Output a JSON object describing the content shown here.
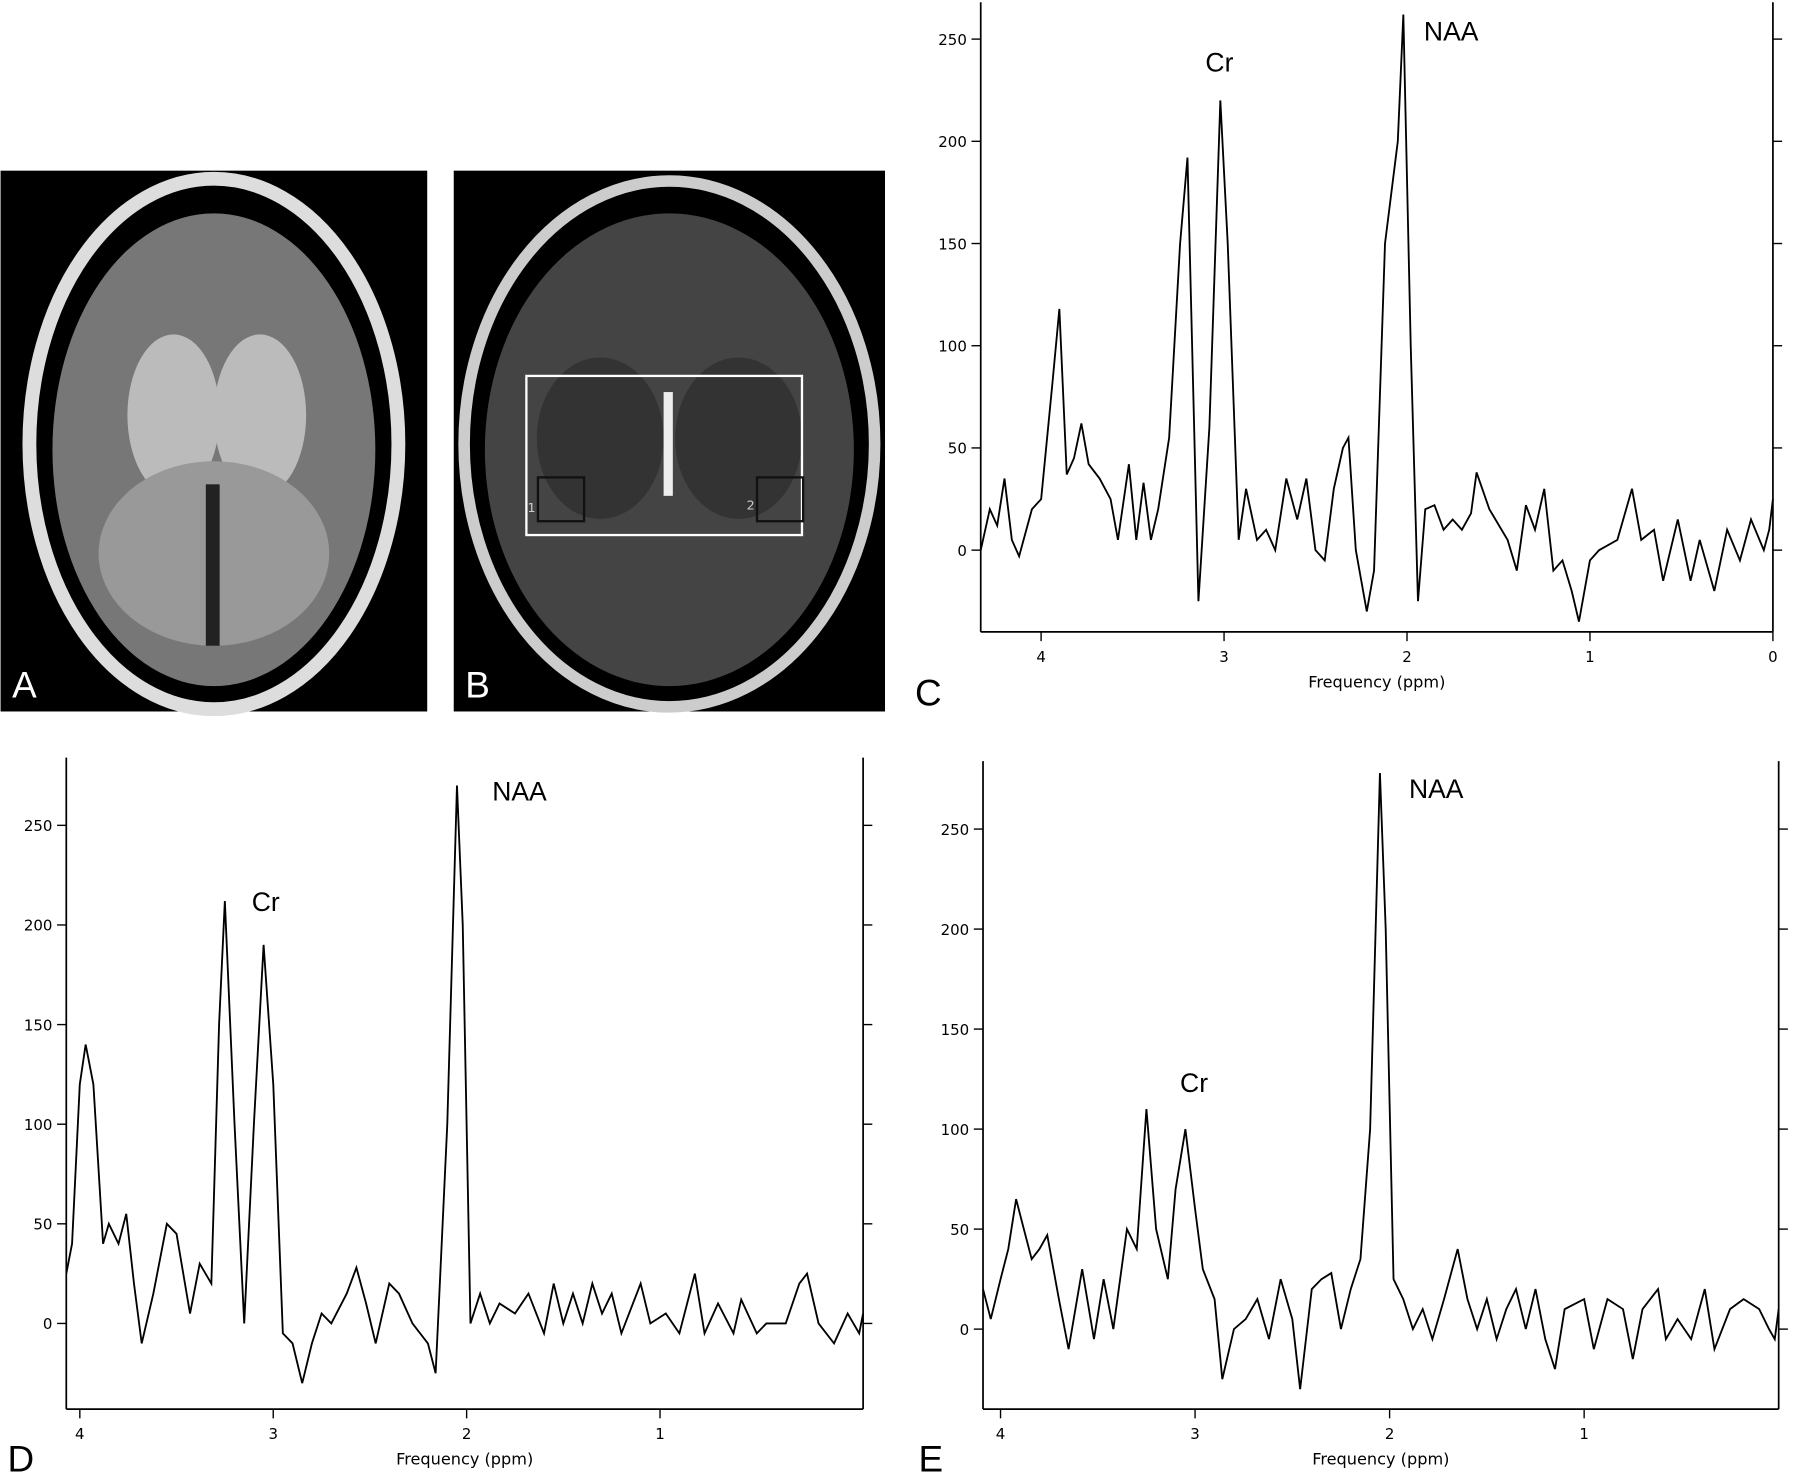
{
  "panel_labels": [
    "A",
    "B",
    "C",
    "D",
    "E"
  ],
  "image_b": {
    "voxel_labels": [
      "1",
      "2"
    ]
  },
  "chart_data": [
    {
      "type": "line",
      "color": "#000000",
      "xlabel": "Frequency (ppm)",
      "annotations": [
        "Cr",
        "NAA"
      ],
      "xlim": [
        4.33,
        0
      ],
      "ylim": [
        -40,
        268
      ],
      "xticks": [
        4,
        3,
        2,
        1,
        0
      ],
      "yticks": [
        0,
        50,
        100,
        150,
        200,
        250
      ],
      "x": [
        4.33,
        4.28,
        4.24,
        4.2,
        4.16,
        4.12,
        4.05,
        4.0,
        3.94,
        3.9,
        3.86,
        3.82,
        3.78,
        3.74,
        3.68,
        3.62,
        3.58,
        3.52,
        3.48,
        3.44,
        3.4,
        3.36,
        3.3,
        3.24,
        3.2,
        3.14,
        3.08,
        3.02,
        2.98,
        2.92,
        2.88,
        2.82,
        2.77,
        2.72,
        2.66,
        2.6,
        2.55,
        2.5,
        2.45,
        2.4,
        2.35,
        2.32,
        2.28,
        2.22,
        2.18,
        2.12,
        2.05,
        2.02,
        1.98,
        1.94,
        1.9,
        1.85,
        1.8,
        1.75,
        1.7,
        1.65,
        1.62,
        1.55,
        1.45,
        1.4,
        1.35,
        1.3,
        1.25,
        1.2,
        1.15,
        1.1,
        1.06,
        1.0,
        0.95,
        0.85,
        0.77,
        0.72,
        0.65,
        0.6,
        0.52,
        0.45,
        0.4,
        0.32,
        0.25,
        0.18,
        0.12,
        0.05,
        0.02,
        0
      ],
      "values": [
        0,
        20,
        12,
        35,
        5,
        -3,
        20,
        25,
        80,
        118,
        37,
        45,
        62,
        42,
        35,
        25,
        5,
        42,
        5,
        33,
        5,
        20,
        55,
        150,
        192,
        -25,
        60,
        220,
        150,
        5,
        30,
        5,
        10,
        0,
        35,
        15,
        35,
        0,
        -5,
        30,
        50,
        55,
        0,
        -30,
        -10,
        150,
        200,
        262,
        100,
        -25,
        20,
        22,
        10,
        15,
        10,
        18,
        38,
        20,
        5,
        -10,
        22,
        10,
        30,
        -10,
        -5,
        -20,
        -35,
        -5,
        0,
        5,
        30,
        5,
        10,
        -15,
        15,
        -15,
        5,
        -20,
        10,
        -5,
        15,
        0,
        10,
        25
      ]
    },
    {
      "type": "line",
      "color": "#000000",
      "xlabel": "Frequency (ppm)",
      "annotations": [
        "Cr",
        "NAA"
      ],
      "xlim": [
        4.07,
        -0.05
      ],
      "ylim": [
        -43,
        284
      ],
      "xticks": [
        4,
        3,
        2,
        1
      ],
      "yticks": [
        0,
        50,
        100,
        150,
        200,
        250
      ],
      "x": [
        4.07,
        4.04,
        4.0,
        3.97,
        3.93,
        3.88,
        3.85,
        3.8,
        3.76,
        3.72,
        3.68,
        3.62,
        3.55,
        3.5,
        3.43,
        3.38,
        3.32,
        3.28,
        3.25,
        3.2,
        3.15,
        3.1,
        3.05,
        3.0,
        2.95,
        2.9,
        2.85,
        2.8,
        2.75,
        2.7,
        2.62,
        2.57,
        2.52,
        2.47,
        2.4,
        2.35,
        2.28,
        2.2,
        2.16,
        2.1,
        2.05,
        2.02,
        1.98,
        1.93,
        1.88,
        1.83,
        1.75,
        1.68,
        1.6,
        1.55,
        1.5,
        1.45,
        1.4,
        1.35,
        1.3,
        1.25,
        1.2,
        1.1,
        1.05,
        0.97,
        0.9,
        0.82,
        0.77,
        0.7,
        0.62,
        0.58,
        0.5,
        0.45,
        0.35,
        0.28,
        0.24,
        0.18,
        0.1,
        0.03,
        -0.03,
        -0.05
      ],
      "values": [
        25,
        40,
        120,
        140,
        120,
        40,
        50,
        40,
        55,
        20,
        -10,
        15,
        50,
        45,
        5,
        30,
        20,
        150,
        212,
        100,
        0,
        100,
        190,
        120,
        -5,
        -10,
        -30,
        -10,
        5,
        0,
        15,
        28,
        10,
        -10,
        20,
        15,
        0,
        -10,
        -25,
        100,
        270,
        200,
        0,
        15,
        0,
        10,
        5,
        15,
        -5,
        20,
        0,
        15,
        0,
        20,
        5,
        15,
        -5,
        20,
        0,
        5,
        -5,
        25,
        -5,
        10,
        -5,
        12,
        -5,
        0,
        0,
        20,
        25,
        0,
        -10,
        5,
        -5,
        5
      ]
    },
    {
      "type": "line",
      "color": "#000000",
      "xlabel": "Frequency (ppm)",
      "annotations": [
        "Cr",
        "NAA"
      ],
      "xlim": [
        4.09,
        0
      ],
      "ylim": [
        -40,
        284
      ],
      "xticks": [
        4,
        3,
        2,
        1
      ],
      "yticks": [
        0,
        50,
        100,
        150,
        200,
        250
      ],
      "x": [
        4.09,
        4.05,
        4.0,
        3.96,
        3.92,
        3.88,
        3.84,
        3.8,
        3.76,
        3.7,
        3.65,
        3.58,
        3.52,
        3.47,
        3.42,
        3.35,
        3.3,
        3.25,
        3.2,
        3.14,
        3.1,
        3.05,
        3.0,
        2.96,
        2.9,
        2.86,
        2.8,
        2.74,
        2.68,
        2.62,
        2.56,
        2.5,
        2.46,
        2.4,
        2.35,
        2.3,
        2.25,
        2.2,
        2.15,
        2.1,
        2.05,
        2.02,
        1.98,
        1.93,
        1.88,
        1.83,
        1.78,
        1.72,
        1.65,
        1.6,
        1.55,
        1.5,
        1.45,
        1.4,
        1.35,
        1.3,
        1.25,
        1.2,
        1.15,
        1.1,
        1.0,
        0.95,
        0.88,
        0.8,
        0.75,
        0.7,
        0.62,
        0.58,
        0.52,
        0.45,
        0.38,
        0.33,
        0.25,
        0.18,
        0.1,
        0.05,
        0.02,
        0
      ],
      "values": [
        20,
        5,
        25,
        40,
        65,
        50,
        35,
        40,
        47,
        15,
        -10,
        30,
        -5,
        25,
        0,
        50,
        40,
        110,
        50,
        25,
        70,
        100,
        60,
        30,
        15,
        -25,
        0,
        5,
        15,
        -5,
        25,
        5,
        -30,
        20,
        25,
        28,
        0,
        20,
        35,
        100,
        278,
        200,
        25,
        15,
        0,
        10,
        -5,
        15,
        40,
        15,
        0,
        15,
        -5,
        10,
        20,
        0,
        20,
        -5,
        -20,
        10,
        15,
        -10,
        15,
        10,
        -15,
        10,
        20,
        -5,
        5,
        -5,
        20,
        -10,
        10,
        15,
        10,
        0,
        -5,
        10
      ]
    }
  ]
}
